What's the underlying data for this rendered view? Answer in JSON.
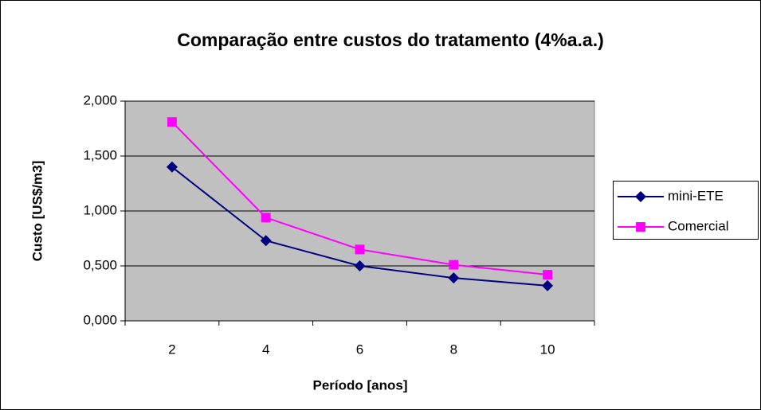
{
  "chart_data": {
    "type": "line",
    "title": "Comparação entre custos do tratamento (4%a.a.)",
    "xlabel": "Período [anos]",
    "ylabel": "Custo [US$/m3]",
    "categories": [
      "2",
      "4",
      "6",
      "8",
      "10"
    ],
    "series": [
      {
        "name": "mini-ETE",
        "color": "#000080",
        "marker": "diamond",
        "values": [
          1.4,
          0.73,
          0.5,
          0.39,
          0.32
        ]
      },
      {
        "name": "Comercial",
        "color": "#ff00ff",
        "marker": "square",
        "values": [
          1.81,
          0.94,
          0.65,
          0.51,
          0.42
        ]
      }
    ],
    "ylim": [
      0,
      2
    ],
    "yticks": [
      {
        "value": 0,
        "label": "0,000"
      },
      {
        "value": 0.5,
        "label": "0,500"
      },
      {
        "value": 1,
        "label": "1,000"
      },
      {
        "value": 1.5,
        "label": "1,500"
      },
      {
        "value": 2,
        "label": "2,000"
      }
    ],
    "grid": true,
    "legend": "right"
  }
}
